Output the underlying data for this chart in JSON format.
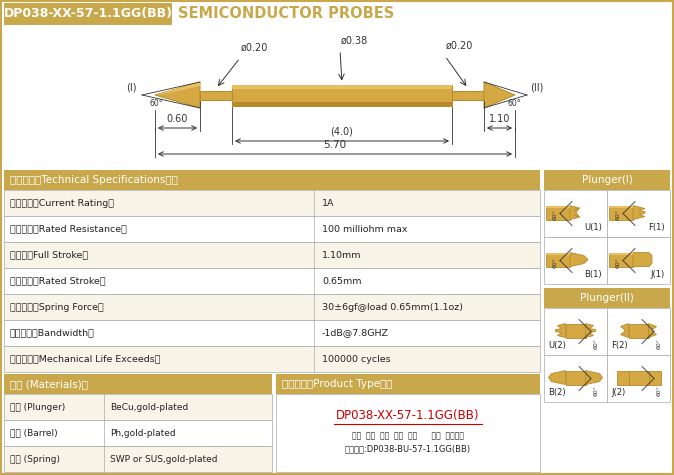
{
  "title_box_text": "DP038-XX-57-1.1GG(BB)",
  "title_box_bg": "#C9A84C",
  "title_right_text": "SEMICONDUCTOR PROBES",
  "bg_color": "#FFFFFF",
  "gold_color": "#C9A84C",
  "probe_gold": "#D4A843",
  "probe_dark_gold": "#B8892A",
  "probe_shadow": "#A07820",
  "ann_color": "#333333",
  "white": "#FFFFFF",
  "border": "#AAAAAA",
  "tc": "#222222",
  "row_alt": "#F8F4E8",
  "red_text": "#CC0000",
  "specs_header": "技术要求（Technical Specifications）：",
  "specs": [
    [
      "额定电流（Current Rating）",
      "1A"
    ],
    [
      "额定电阻（Rated Resistance）",
      "100 milliohm max"
    ],
    [
      "满行程（Full Stroke）",
      "1.10mm"
    ],
    [
      "额定行程（Rated Stroke）",
      "0.65mm"
    ],
    [
      "额定弹力（Spring Force）",
      "30±6gf@load 0.65mm(1.1oz)"
    ],
    [
      "频率带宽（Bandwidth）",
      "-1dB@7.8GHZ"
    ],
    [
      "测试寿命（Mechanical Life Exceeds）",
      "100000 cycles"
    ]
  ],
  "mat_header": "材质 (Materials)：",
  "materials": [
    [
      "针头 (Plunger)",
      "BeCu,gold-plated"
    ],
    [
      "针管 (Barrel)",
      "Ph,gold-plated"
    ],
    [
      "弹簧 (Spring)",
      "SWP or SUS,gold-plated"
    ]
  ],
  "pt_header": "成品型号（Product Type）：",
  "pt_main": "DP038-XX-57-1.1GG(BB)",
  "pt_sub": "系列  规格  头型  总长  弹力      镀金  针头材质",
  "pt_example": "订购举例:DP038-BU-57-1.1GG(BB)",
  "dim_labels": [
    "ø0.20",
    "ø0.38",
    "ø0.20"
  ],
  "dim_0_60": "0.60",
  "dim_4_0": "(4.0)",
  "dim_1_10": "1.10",
  "dim_5_70": "5.70",
  "plunger1_header": "Plunger(I)",
  "plunger2_header": "Plunger(II)",
  "p1_labels": [
    "U(1)",
    "F(1)",
    "B(1)",
    "J(1)"
  ],
  "p2_labels": [
    "U(2)",
    "F(2)",
    "B(2)",
    "J(2)"
  ]
}
